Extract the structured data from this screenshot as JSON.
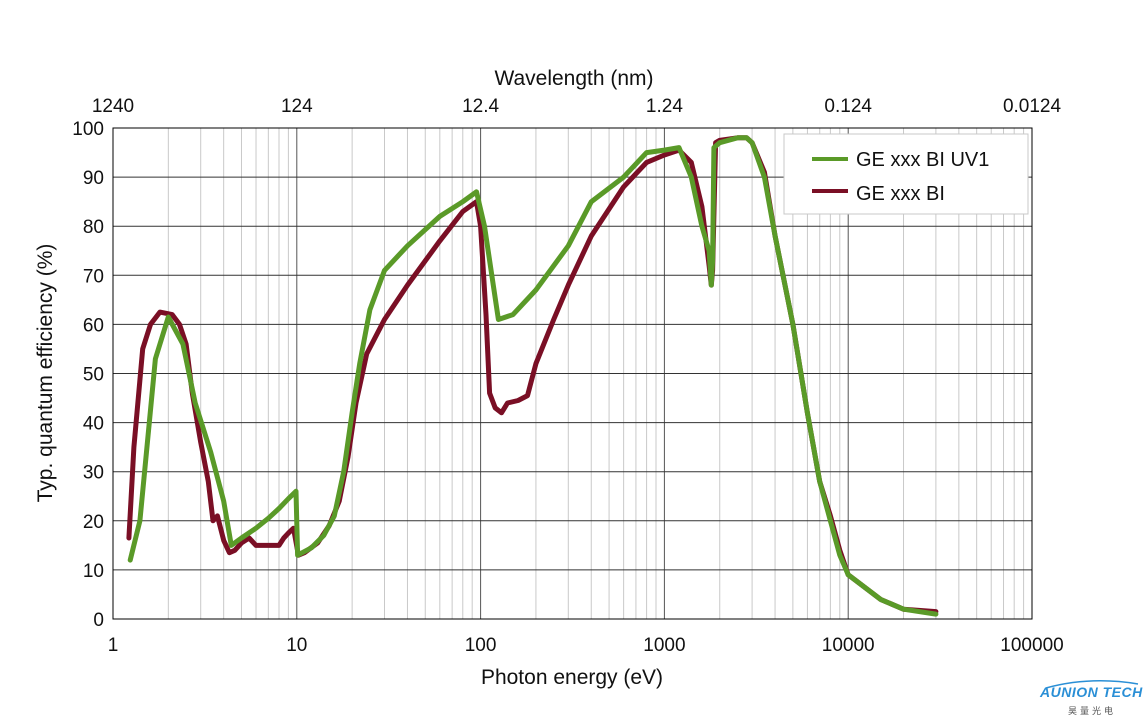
{
  "chart_data": {
    "type": "line",
    "xlabel": "Photon energy (eV)",
    "ylabel": "Typ. quantum efficiency (%)",
    "top_xlabel": "Wavelength (nm)",
    "xscale": "log",
    "xlim": [
      1,
      100000
    ],
    "ylim": [
      0,
      100
    ],
    "grid": true,
    "legend_position": "top-right",
    "x_ticks": [
      {
        "value": 1,
        "label": "1"
      },
      {
        "value": 10,
        "label": "10"
      },
      {
        "value": 100,
        "label": "100"
      },
      {
        "value": 1000,
        "label": "1000"
      },
      {
        "value": 10000,
        "label": "10000"
      },
      {
        "value": 100000,
        "label": "100000"
      }
    ],
    "top_ticks": [
      {
        "value": 1240,
        "label": "1240"
      },
      {
        "value": 124,
        "label": "124"
      },
      {
        "value": 12.4,
        "label": "12.4"
      },
      {
        "value": 1.24,
        "label": "1.24"
      },
      {
        "value": 0.124,
        "label": "0.124"
      },
      {
        "value": 0.0124,
        "label": "0.0124"
      }
    ],
    "y_ticks": [
      "0",
      "10",
      "20",
      "30",
      "40",
      "50",
      "60",
      "70",
      "80",
      "90",
      "100"
    ],
    "series": [
      {
        "name": "GE xxx BI UV1",
        "color": "#5a9a28",
        "points": [
          [
            1.24,
            12
          ],
          [
            1.4,
            20
          ],
          [
            1.7,
            53
          ],
          [
            2.0,
            61.5
          ],
          [
            2.4,
            56
          ],
          [
            2.8,
            44
          ],
          [
            3.4,
            34
          ],
          [
            4.0,
            24
          ],
          [
            4.4,
            15
          ],
          [
            5.0,
            16.5
          ],
          [
            6.0,
            18.5
          ],
          [
            7.0,
            20.5
          ],
          [
            8.0,
            22.5
          ],
          [
            9.0,
            24.5
          ],
          [
            9.9,
            26
          ],
          [
            10.1,
            13
          ],
          [
            12,
            14.5
          ],
          [
            14,
            17
          ],
          [
            16,
            21
          ],
          [
            18,
            30
          ],
          [
            20,
            42
          ],
          [
            22,
            52
          ],
          [
            25,
            63
          ],
          [
            30,
            71
          ],
          [
            40,
            76
          ],
          [
            60,
            82
          ],
          [
            80,
            85
          ],
          [
            95,
            87
          ],
          [
            105,
            80
          ],
          [
            125,
            61
          ],
          [
            150,
            62
          ],
          [
            200,
            67
          ],
          [
            300,
            76
          ],
          [
            400,
            85
          ],
          [
            600,
            90
          ],
          [
            800,
            95
          ],
          [
            1000,
            95.5
          ],
          [
            1200,
            96
          ],
          [
            1400,
            90
          ],
          [
            1600,
            80
          ],
          [
            1750,
            75
          ],
          [
            1800,
            68
          ],
          [
            1830,
            73
          ],
          [
            1860,
            96
          ],
          [
            2000,
            97
          ],
          [
            2500,
            98
          ],
          [
            2800,
            98
          ],
          [
            3000,
            97
          ],
          [
            3500,
            90
          ],
          [
            4000,
            78
          ],
          [
            5000,
            60
          ],
          [
            6000,
            42
          ],
          [
            7000,
            28
          ],
          [
            8000,
            20
          ],
          [
            9000,
            13
          ],
          [
            10000,
            9
          ],
          [
            15000,
            4
          ],
          [
            20000,
            2
          ],
          [
            30000,
            1
          ]
        ]
      },
      {
        "name": "GE xxx BI",
        "color": "#7a0f25",
        "points": [
          [
            1.22,
            16.5
          ],
          [
            1.3,
            35
          ],
          [
            1.45,
            55
          ],
          [
            1.6,
            60
          ],
          [
            1.8,
            62.5
          ],
          [
            2.1,
            62
          ],
          [
            2.3,
            60
          ],
          [
            2.5,
            56
          ],
          [
            2.7,
            46
          ],
          [
            3.0,
            36
          ],
          [
            3.3,
            28
          ],
          [
            3.5,
            20
          ],
          [
            3.7,
            21
          ],
          [
            4.0,
            16
          ],
          [
            4.3,
            13.5
          ],
          [
            4.6,
            14
          ],
          [
            5.0,
            15.5
          ],
          [
            5.5,
            16.5
          ],
          [
            6.0,
            15
          ],
          [
            7.0,
            15
          ],
          [
            8.0,
            15
          ],
          [
            8.5,
            16.5
          ],
          [
            9.0,
            17.5
          ],
          [
            9.6,
            18.5
          ],
          [
            10.2,
            13
          ],
          [
            11,
            13.5
          ],
          [
            13,
            15.5
          ],
          [
            15,
            19
          ],
          [
            17,
            24
          ],
          [
            19,
            33
          ],
          [
            21,
            44
          ],
          [
            24,
            54
          ],
          [
            30,
            61
          ],
          [
            40,
            68
          ],
          [
            60,
            77
          ],
          [
            80,
            83
          ],
          [
            95,
            85
          ],
          [
            100,
            80
          ],
          [
            107,
            62
          ],
          [
            112,
            46
          ],
          [
            120,
            43
          ],
          [
            130,
            42
          ],
          [
            140,
            44
          ],
          [
            160,
            44.5
          ],
          [
            180,
            45.5
          ],
          [
            200,
            52
          ],
          [
            250,
            61
          ],
          [
            300,
            68
          ],
          [
            400,
            78
          ],
          [
            600,
            88
          ],
          [
            800,
            93
          ],
          [
            1000,
            94.5
          ],
          [
            1200,
            95.5
          ],
          [
            1400,
            93
          ],
          [
            1600,
            84
          ],
          [
            1750,
            72
          ],
          [
            1800,
            68
          ],
          [
            1830,
            71
          ],
          [
            1900,
            97
          ],
          [
            2000,
            97.5
          ],
          [
            2500,
            98
          ],
          [
            2800,
            98
          ],
          [
            3000,
            97
          ],
          [
            3500,
            91
          ],
          [
            4000,
            78
          ],
          [
            5000,
            60
          ],
          [
            6000,
            42
          ],
          [
            7000,
            28
          ],
          [
            8000,
            21
          ],
          [
            9000,
            14
          ],
          [
            10000,
            9
          ],
          [
            15000,
            4
          ],
          [
            20000,
            2
          ],
          [
            30000,
            1.5
          ]
        ]
      }
    ]
  },
  "logo": {
    "text": "AUNION TECH",
    "sub": "昊量光电"
  }
}
